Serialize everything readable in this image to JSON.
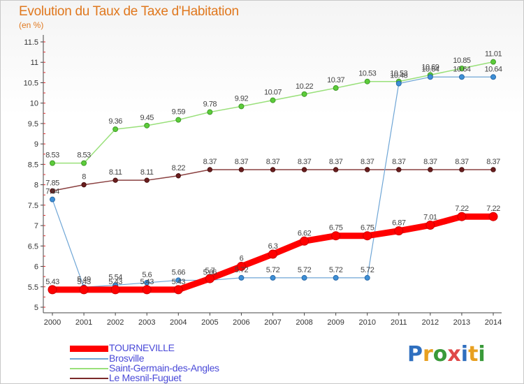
{
  "title": "Evolution du Taux de Taxe d'Habitation",
  "subtitle": "(en %)",
  "logo": {
    "text": "Proxiti",
    "colors": [
      "#2f6fbf",
      "#e8a020",
      "#3a9a3a",
      "#e04848"
    ]
  },
  "chart_data": {
    "type": "line",
    "title": "Evolution du Taux de Taxe d'Habitation",
    "ylabel": "(en %)",
    "xlabel": "",
    "x": [
      "2000",
      "2001",
      "2002",
      "2003",
      "2004",
      "2005",
      "2006",
      "2007",
      "2008",
      "2009",
      "2010",
      "2011",
      "2012",
      "2013",
      "2014"
    ],
    "ylim": [
      5,
      11.5
    ],
    "yticks": [
      "5",
      "5.5",
      "6",
      "6.5",
      "7",
      "7.5",
      "8",
      "8.5",
      "9",
      "9.5",
      "10",
      "10.5",
      "11",
      "11.5"
    ],
    "grid": false,
    "legend_position": "bottom-left",
    "series": [
      {
        "name": "TOURNEVILLE",
        "color": "#ff0000",
        "values": [
          5.43,
          5.43,
          5.43,
          5.43,
          5.43,
          5.7,
          6,
          6.3,
          6.62,
          6.75,
          6.75,
          6.87,
          7.01,
          7.22,
          7.22
        ],
        "labels": [
          "5.43",
          "5.43",
          "5.43",
          "5.43",
          "5.43",
          "5.7",
          "6",
          "6.3",
          "6.62",
          "6.75",
          "6.75",
          "6.87",
          "7.01",
          "7.22",
          "7.22"
        ]
      },
      {
        "name": "Brosville",
        "color": "#6fa6d6",
        "values": [
          7.64,
          5.49,
          5.54,
          5.6,
          5.66,
          5.66,
          5.72,
          5.72,
          5.72,
          5.72,
          5.72,
          10.48,
          10.64,
          10.64,
          10.64
        ],
        "labels": [
          "7.64",
          "5.49",
          "5.54",
          "5.6",
          "5.66",
          "5.66",
          "5.72",
          "5.72",
          "5.72",
          "5.72",
          "5.72",
          "10.48",
          "10.64",
          "10.64",
          "10.64"
        ]
      },
      {
        "name": "Saint-Germain-des-Angles",
        "color": "#99e07a",
        "values": [
          8.53,
          8.53,
          9.36,
          9.45,
          9.59,
          9.78,
          9.92,
          10.07,
          10.22,
          10.37,
          10.53,
          10.53,
          10.69,
          10.85,
          11.01
        ],
        "labels": [
          "8.53",
          "8.53",
          "9.36",
          "9.45",
          "9.59",
          "9.78",
          "9.92",
          "10.07",
          "10.22",
          "10.37",
          "10.53",
          "10.53",
          "10.69",
          "10.85",
          "11.01"
        ]
      },
      {
        "name": "Le Mesnil-Fuguet",
        "color": "#7a2a2a",
        "values": [
          7.85,
          8,
          8.11,
          8.11,
          8.22,
          8.37,
          8.37,
          8.37,
          8.37,
          8.37,
          8.37,
          8.37,
          8.37,
          8.37,
          8.37
        ],
        "labels": [
          "7.85",
          "8",
          "8.11",
          "8.11",
          "8.22",
          "8.37",
          "8.37",
          "8.37",
          "8.37",
          "8.37",
          "8.37",
          "8.37",
          "8.37",
          "8.37",
          "8.37"
        ]
      }
    ]
  }
}
